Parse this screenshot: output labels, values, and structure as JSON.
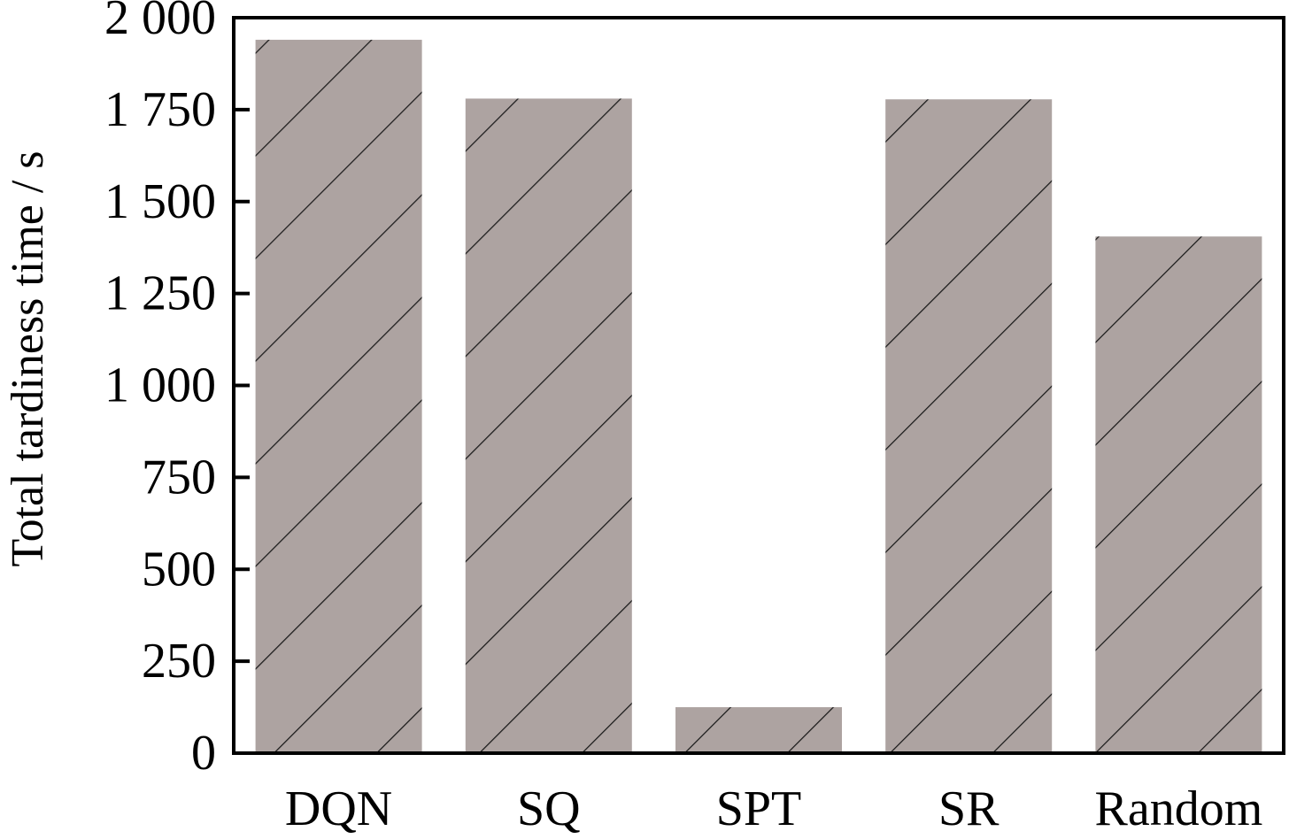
{
  "chart_data": {
    "type": "bar",
    "categories": [
      "DQN",
      "SQ",
      "SPT",
      "SR",
      "Random"
    ],
    "values": [
      1940,
      1780,
      125,
      1778,
      1405
    ],
    "title": "",
    "xlabel": "",
    "ylabel": "Total tardiness time / s",
    "ylim": [
      0,
      2000
    ],
    "yticks": [
      0,
      250,
      500,
      750,
      1000,
      1250,
      1500,
      1750,
      2000
    ],
    "ytick_labels": [
      "0",
      "250",
      "500",
      "750",
      "1 000",
      "1 250",
      "1 500",
      "1 750",
      "2 000"
    ],
    "grid": false,
    "legend": "none",
    "bar_color": "#ada3a1",
    "hatch": "diagonal"
  }
}
